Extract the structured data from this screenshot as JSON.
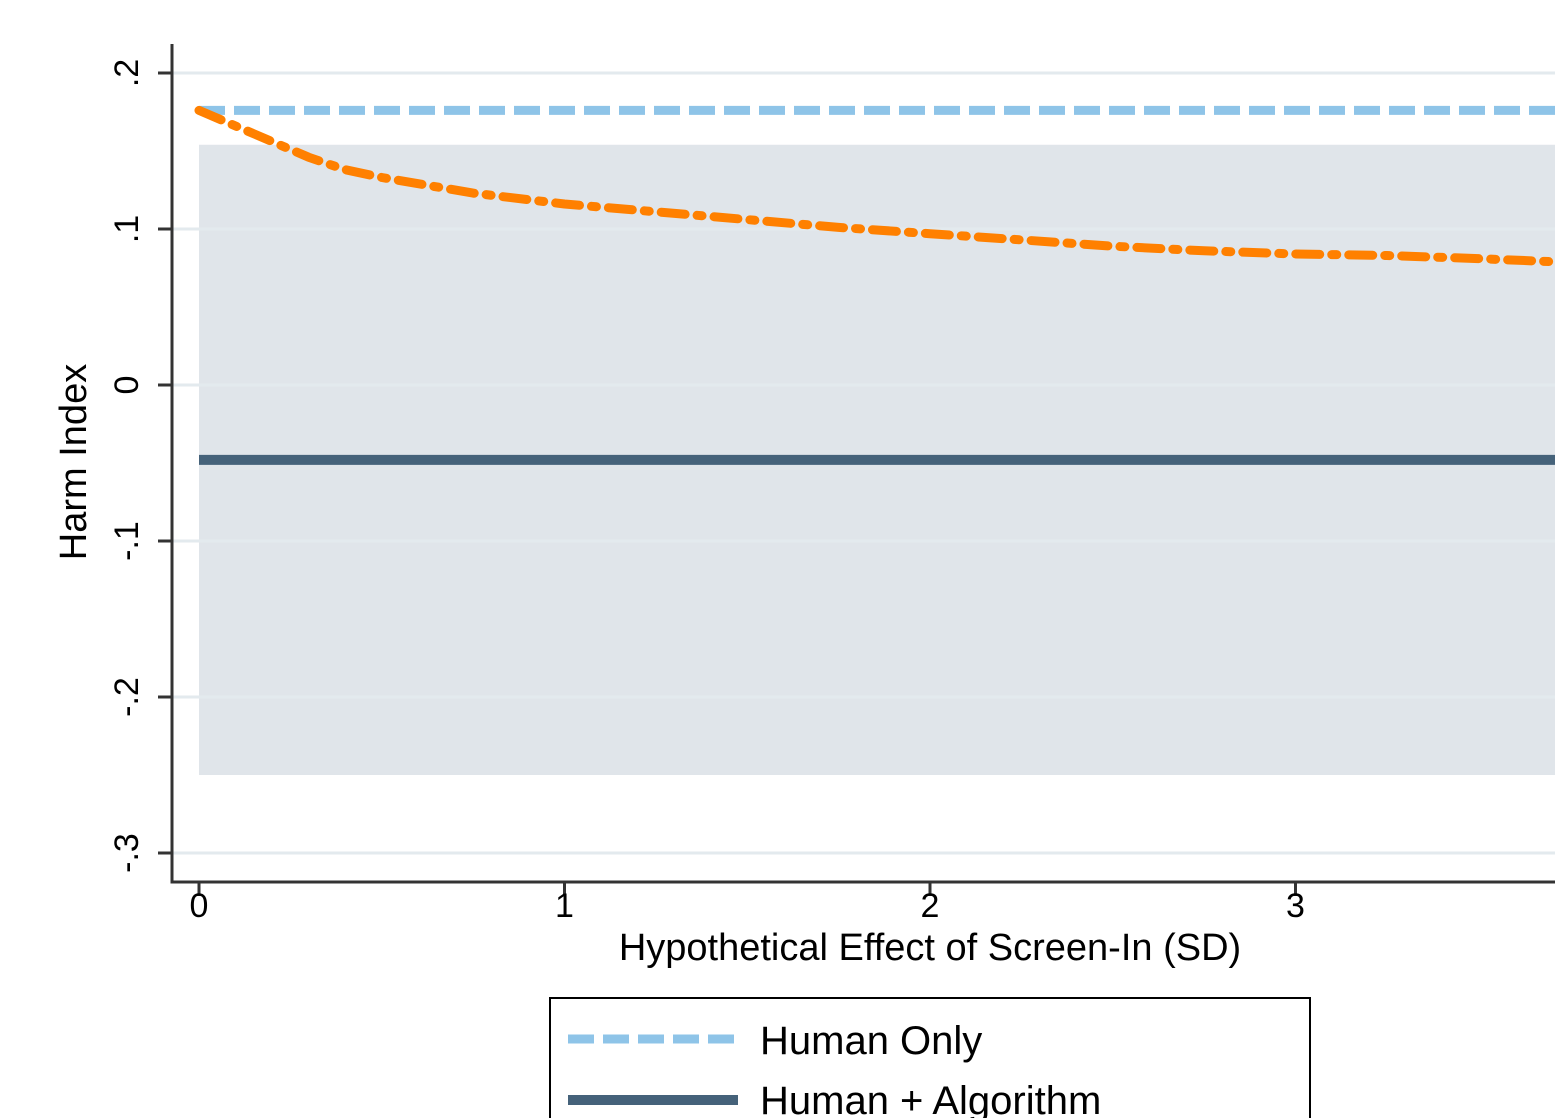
{
  "chart_data": {
    "type": "line",
    "xlabel": "Hypothetical Effect of Screen-In (SD)",
    "ylabel": "Harm Index",
    "xlim": [
      0,
      3.72
    ],
    "ylim": [
      -0.318,
      0.2
    ],
    "x_ticks": [
      {
        "value": 0,
        "label": "0"
      },
      {
        "value": 1,
        "label": "1"
      },
      {
        "value": 2,
        "label": "2"
      },
      {
        "value": 3,
        "label": "3"
      }
    ],
    "y_ticks": [
      {
        "value": 0.2,
        "label": ".2"
      },
      {
        "value": 0.1,
        "label": ".1"
      },
      {
        "value": 0,
        "label": "0"
      },
      {
        "value": -0.1,
        "label": "-.1"
      },
      {
        "value": -0.2,
        "label": "-.2"
      },
      {
        "value": -0.3,
        "label": "-.3"
      }
    ],
    "grid": true,
    "band": {
      "x_range": [
        0,
        3.72
      ],
      "y_range": [
        -0.25,
        0.154
      ],
      "color": "#e0e5ea"
    },
    "series": [
      {
        "name": "Human Only",
        "color": "#8ec4e8",
        "style": "dashed",
        "x": [
          0,
          3.72
        ],
        "y": [
          0.176,
          0.176
        ]
      },
      {
        "name": "Human + Algorithm",
        "color": "#45627a",
        "style": "solid",
        "x": [
          0,
          3.72
        ],
        "y": [
          -0.048,
          -0.048
        ]
      },
      {
        "name": "",
        "color": "#ff8000",
        "style": "dashdot",
        "x": [
          0,
          0.1,
          0.2,
          0.3,
          0.4,
          0.5,
          0.75,
          1.0,
          1.25,
          1.5,
          1.75,
          2.0,
          2.25,
          2.5,
          2.75,
          3.0,
          3.25,
          3.5,
          3.72
        ],
        "y": [
          0.176,
          0.166,
          0.156,
          0.146,
          0.138,
          0.133,
          0.123,
          0.116,
          0.111,
          0.106,
          0.101,
          0.097,
          0.093,
          0.089,
          0.086,
          0.084,
          0.083,
          0.081,
          0.079
        ]
      }
    ],
    "legend": {
      "position": "bottom-center",
      "entries": [
        {
          "label": "Human Only",
          "color": "#8ec4e8",
          "style": "dashed"
        },
        {
          "label": "Human + Algorithm",
          "color": "#45627a",
          "style": "solid"
        }
      ]
    }
  }
}
